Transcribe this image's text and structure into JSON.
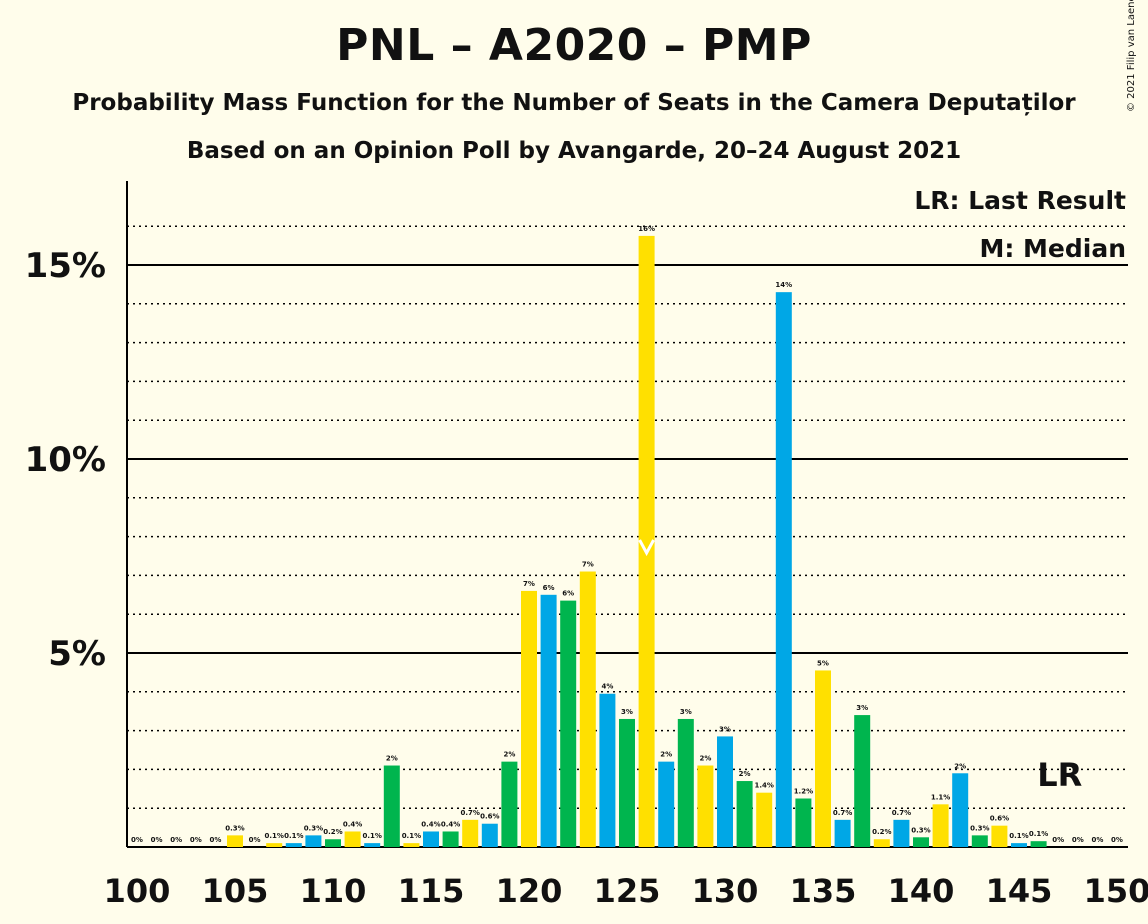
{
  "title": "PNL – A2020 – PMP",
  "subtitle1": "Probability Mass Function for the Number of Seats in the Camera Deputaților",
  "subtitle2": "Based on an Opinion Poll by Avangarde, 20–24 August 2021",
  "copyright": "© 2021 Filip van Laenen",
  "legend": {
    "lr": "LR: Last Result",
    "m": "M: Median"
  },
  "lr_label": "LR",
  "colors": {
    "background": "#FFFDEB",
    "blue": "#00A7E6",
    "yellow": "#FFE000",
    "green": "#00B54E"
  },
  "chart_data": {
    "type": "bar",
    "x": [
      100,
      101,
      102,
      103,
      104,
      105,
      106,
      107,
      108,
      109,
      110,
      111,
      112,
      113,
      114,
      115,
      116,
      117,
      118,
      119,
      120,
      121,
      122,
      123,
      124,
      125,
      126,
      127,
      128,
      129,
      130,
      131,
      132,
      133,
      134,
      135,
      136,
      137,
      138,
      139,
      140,
      141,
      142,
      143,
      144,
      145,
      146,
      147,
      148,
      149,
      150
    ],
    "values": [
      0,
      0,
      0,
      0,
      0,
      0.3,
      0,
      0.1,
      0.1,
      0.3,
      0.2,
      0.4,
      0.1,
      2.1,
      0.1,
      0.4,
      0.4,
      0.7,
      0.6,
      2.2,
      6.6,
      6.5,
      6.35,
      7.1,
      3.95,
      3.3,
      15.75,
      2.2,
      3.3,
      2.1,
      2.85,
      1.7,
      1.4,
      14.3,
      1.25,
      4.55,
      0.7,
      3.4,
      0.2,
      0.7,
      0.25,
      1.1,
      1.9,
      0.3,
      0.55,
      0.1,
      0.15,
      0,
      0,
      0,
      0
    ],
    "labels": [
      "0%",
      "0%",
      "0%",
      "0%",
      "0%",
      "0.3%",
      "0%",
      "0.1%",
      "0.1%",
      "0.3%",
      "0.2%",
      "0.4%",
      "0.1%",
      "2%",
      "0.1%",
      "0.4%",
      "0.4%",
      "0.7%",
      "0.6%",
      "2%",
      "7%",
      "6%",
      "6%",
      "7%",
      "4%",
      "3%",
      "16%",
      "2%",
      "3%",
      "2%",
      "3%",
      "2%",
      "1.4%",
      "14%",
      "1.2%",
      "5%",
      "0.7%",
      "3%",
      "0.2%",
      "0.7%",
      "0.3%",
      "1.1%",
      "2%",
      "0.3%",
      "0.6%",
      "0.1%",
      "0.1%",
      "0%",
      "0%",
      "0%",
      "0%"
    ],
    "colors": [
      "yellow",
      "blue",
      "green",
      "yellow",
      "blue",
      "yellow",
      "green",
      "yellow",
      "blue",
      "blue",
      "green",
      "yellow",
      "blue",
      "green",
      "yellow",
      "blue",
      "green",
      "yellow",
      "blue",
      "green",
      "yellow",
      "blue",
      "green",
      "yellow",
      "blue",
      "green",
      "yellow",
      "blue",
      "green",
      "yellow",
      "blue",
      "green",
      "yellow",
      "blue",
      "green",
      "yellow",
      "blue",
      "green",
      "yellow",
      "blue",
      "green",
      "yellow",
      "blue",
      "green",
      "yellow",
      "blue",
      "green",
      "yellow",
      "blue",
      "green",
      "yellow"
    ],
    "x_ticks": [
      "100",
      "105",
      "110",
      "115",
      "120",
      "125",
      "130",
      "135",
      "140",
      "145",
      "150"
    ],
    "y_ticks": [
      "5%",
      "10%",
      "15%"
    ],
    "ylim": [
      0,
      17
    ],
    "median": 126,
    "last_result": 148
  }
}
